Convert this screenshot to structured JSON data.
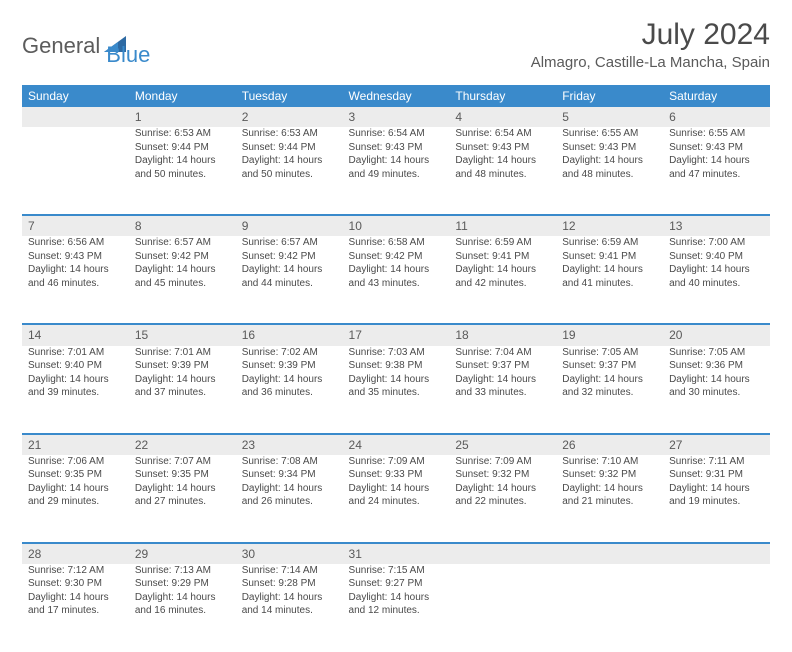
{
  "brand": {
    "part1": "General",
    "part2": "Blue"
  },
  "title": "July 2024",
  "location": "Almagro, Castille-La Mancha, Spain",
  "colors": {
    "accent": "#3a8acb",
    "header_text": "#ffffff",
    "daynum_bg": "#ececec",
    "body_text": "#4a4a4a"
  },
  "weekdays": [
    "Sunday",
    "Monday",
    "Tuesday",
    "Wednesday",
    "Thursday",
    "Friday",
    "Saturday"
  ],
  "weeks": [
    [
      {
        "n": "",
        "sr": "",
        "ss": "",
        "d1": "",
        "d2": ""
      },
      {
        "n": "1",
        "sr": "Sunrise: 6:53 AM",
        "ss": "Sunset: 9:44 PM",
        "d1": "Daylight: 14 hours",
        "d2": "and 50 minutes."
      },
      {
        "n": "2",
        "sr": "Sunrise: 6:53 AM",
        "ss": "Sunset: 9:44 PM",
        "d1": "Daylight: 14 hours",
        "d2": "and 50 minutes."
      },
      {
        "n": "3",
        "sr": "Sunrise: 6:54 AM",
        "ss": "Sunset: 9:43 PM",
        "d1": "Daylight: 14 hours",
        "d2": "and 49 minutes."
      },
      {
        "n": "4",
        "sr": "Sunrise: 6:54 AM",
        "ss": "Sunset: 9:43 PM",
        "d1": "Daylight: 14 hours",
        "d2": "and 48 minutes."
      },
      {
        "n": "5",
        "sr": "Sunrise: 6:55 AM",
        "ss": "Sunset: 9:43 PM",
        "d1": "Daylight: 14 hours",
        "d2": "and 48 minutes."
      },
      {
        "n": "6",
        "sr": "Sunrise: 6:55 AM",
        "ss": "Sunset: 9:43 PM",
        "d1": "Daylight: 14 hours",
        "d2": "and 47 minutes."
      }
    ],
    [
      {
        "n": "7",
        "sr": "Sunrise: 6:56 AM",
        "ss": "Sunset: 9:43 PM",
        "d1": "Daylight: 14 hours",
        "d2": "and 46 minutes."
      },
      {
        "n": "8",
        "sr": "Sunrise: 6:57 AM",
        "ss": "Sunset: 9:42 PM",
        "d1": "Daylight: 14 hours",
        "d2": "and 45 minutes."
      },
      {
        "n": "9",
        "sr": "Sunrise: 6:57 AM",
        "ss": "Sunset: 9:42 PM",
        "d1": "Daylight: 14 hours",
        "d2": "and 44 minutes."
      },
      {
        "n": "10",
        "sr": "Sunrise: 6:58 AM",
        "ss": "Sunset: 9:42 PM",
        "d1": "Daylight: 14 hours",
        "d2": "and 43 minutes."
      },
      {
        "n": "11",
        "sr": "Sunrise: 6:59 AM",
        "ss": "Sunset: 9:41 PM",
        "d1": "Daylight: 14 hours",
        "d2": "and 42 minutes."
      },
      {
        "n": "12",
        "sr": "Sunrise: 6:59 AM",
        "ss": "Sunset: 9:41 PM",
        "d1": "Daylight: 14 hours",
        "d2": "and 41 minutes."
      },
      {
        "n": "13",
        "sr": "Sunrise: 7:00 AM",
        "ss": "Sunset: 9:40 PM",
        "d1": "Daylight: 14 hours",
        "d2": "and 40 minutes."
      }
    ],
    [
      {
        "n": "14",
        "sr": "Sunrise: 7:01 AM",
        "ss": "Sunset: 9:40 PM",
        "d1": "Daylight: 14 hours",
        "d2": "and 39 minutes."
      },
      {
        "n": "15",
        "sr": "Sunrise: 7:01 AM",
        "ss": "Sunset: 9:39 PM",
        "d1": "Daylight: 14 hours",
        "d2": "and 37 minutes."
      },
      {
        "n": "16",
        "sr": "Sunrise: 7:02 AM",
        "ss": "Sunset: 9:39 PM",
        "d1": "Daylight: 14 hours",
        "d2": "and 36 minutes."
      },
      {
        "n": "17",
        "sr": "Sunrise: 7:03 AM",
        "ss": "Sunset: 9:38 PM",
        "d1": "Daylight: 14 hours",
        "d2": "and 35 minutes."
      },
      {
        "n": "18",
        "sr": "Sunrise: 7:04 AM",
        "ss": "Sunset: 9:37 PM",
        "d1": "Daylight: 14 hours",
        "d2": "and 33 minutes."
      },
      {
        "n": "19",
        "sr": "Sunrise: 7:05 AM",
        "ss": "Sunset: 9:37 PM",
        "d1": "Daylight: 14 hours",
        "d2": "and 32 minutes."
      },
      {
        "n": "20",
        "sr": "Sunrise: 7:05 AM",
        "ss": "Sunset: 9:36 PM",
        "d1": "Daylight: 14 hours",
        "d2": "and 30 minutes."
      }
    ],
    [
      {
        "n": "21",
        "sr": "Sunrise: 7:06 AM",
        "ss": "Sunset: 9:35 PM",
        "d1": "Daylight: 14 hours",
        "d2": "and 29 minutes."
      },
      {
        "n": "22",
        "sr": "Sunrise: 7:07 AM",
        "ss": "Sunset: 9:35 PM",
        "d1": "Daylight: 14 hours",
        "d2": "and 27 minutes."
      },
      {
        "n": "23",
        "sr": "Sunrise: 7:08 AM",
        "ss": "Sunset: 9:34 PM",
        "d1": "Daylight: 14 hours",
        "d2": "and 26 minutes."
      },
      {
        "n": "24",
        "sr": "Sunrise: 7:09 AM",
        "ss": "Sunset: 9:33 PM",
        "d1": "Daylight: 14 hours",
        "d2": "and 24 minutes."
      },
      {
        "n": "25",
        "sr": "Sunrise: 7:09 AM",
        "ss": "Sunset: 9:32 PM",
        "d1": "Daylight: 14 hours",
        "d2": "and 22 minutes."
      },
      {
        "n": "26",
        "sr": "Sunrise: 7:10 AM",
        "ss": "Sunset: 9:32 PM",
        "d1": "Daylight: 14 hours",
        "d2": "and 21 minutes."
      },
      {
        "n": "27",
        "sr": "Sunrise: 7:11 AM",
        "ss": "Sunset: 9:31 PM",
        "d1": "Daylight: 14 hours",
        "d2": "and 19 minutes."
      }
    ],
    [
      {
        "n": "28",
        "sr": "Sunrise: 7:12 AM",
        "ss": "Sunset: 9:30 PM",
        "d1": "Daylight: 14 hours",
        "d2": "and 17 minutes."
      },
      {
        "n": "29",
        "sr": "Sunrise: 7:13 AM",
        "ss": "Sunset: 9:29 PM",
        "d1": "Daylight: 14 hours",
        "d2": "and 16 minutes."
      },
      {
        "n": "30",
        "sr": "Sunrise: 7:14 AM",
        "ss": "Sunset: 9:28 PM",
        "d1": "Daylight: 14 hours",
        "d2": "and 14 minutes."
      },
      {
        "n": "31",
        "sr": "Sunrise: 7:15 AM",
        "ss": "Sunset: 9:27 PM",
        "d1": "Daylight: 14 hours",
        "d2": "and 12 minutes."
      },
      {
        "n": "",
        "sr": "",
        "ss": "",
        "d1": "",
        "d2": ""
      },
      {
        "n": "",
        "sr": "",
        "ss": "",
        "d1": "",
        "d2": ""
      },
      {
        "n": "",
        "sr": "",
        "ss": "",
        "d1": "",
        "d2": ""
      }
    ]
  ]
}
